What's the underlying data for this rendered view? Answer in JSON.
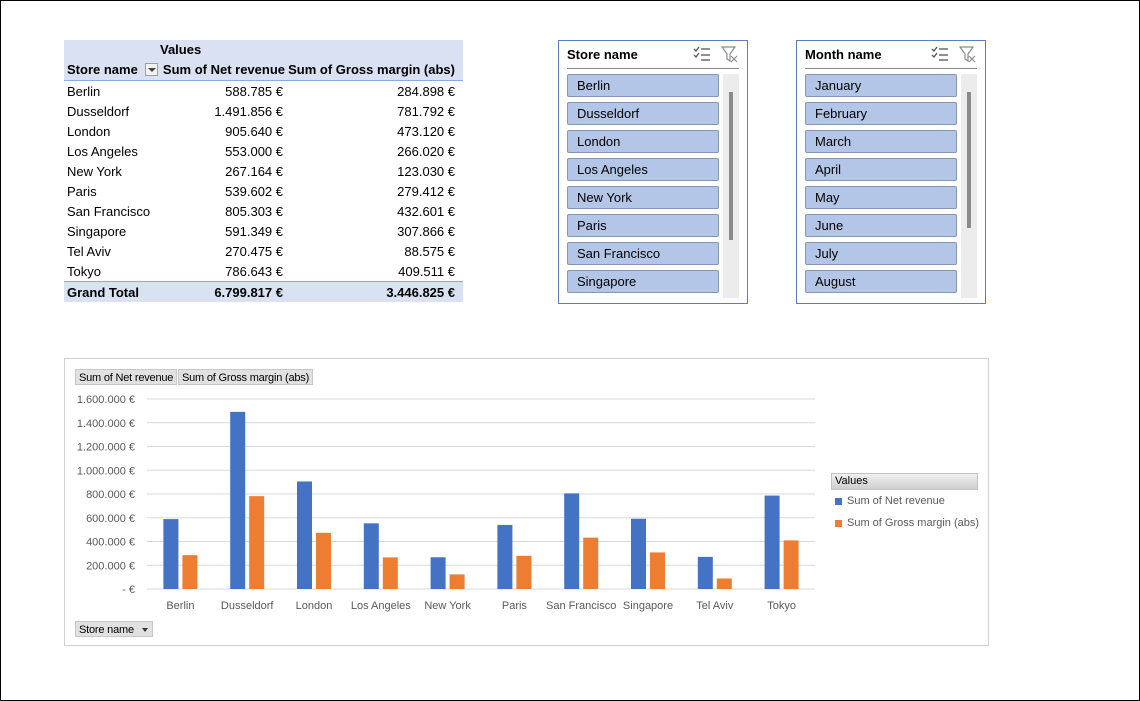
{
  "pivot": {
    "values_label": "Values",
    "col_row": "Store name",
    "col_net": "Sum of Net revenue",
    "col_gross": "Sum of Gross margin (abs)",
    "rows": [
      {
        "store": "Berlin",
        "net": "588.785 €",
        "gross": "284.898 €"
      },
      {
        "store": "Dusseldorf",
        "net": "1.491.856 €",
        "gross": "781.792 €"
      },
      {
        "store": "London",
        "net": "905.640 €",
        "gross": "473.120 €"
      },
      {
        "store": "Los Angeles",
        "net": "553.000 €",
        "gross": "266.020 €"
      },
      {
        "store": "New York",
        "net": "267.164 €",
        "gross": "123.030 €"
      },
      {
        "store": "Paris",
        "net": "539.602 €",
        "gross": "279.412 €"
      },
      {
        "store": "San Francisco",
        "net": "805.303 €",
        "gross": "432.601 €"
      },
      {
        "store": "Singapore",
        "net": "591.349 €",
        "gross": "307.866 €"
      },
      {
        "store": "Tel Aviv",
        "net": "270.475 €",
        "gross": "88.575 €"
      },
      {
        "store": "Tokyo",
        "net": "786.643 €",
        "gross": "409.511 €"
      }
    ],
    "total_label": "Grand Total",
    "total_net": "6.799.817 €",
    "total_gross": "3.446.825 €"
  },
  "slicer_store": {
    "title": "Store name",
    "items": [
      "Berlin",
      "Dusseldorf",
      "London",
      "Los Angeles",
      "New York",
      "Paris",
      "San Francisco",
      "Singapore"
    ]
  },
  "slicer_month": {
    "title": "Month name",
    "items": [
      "January",
      "February",
      "March",
      "April",
      "May",
      "June",
      "July",
      "August"
    ]
  },
  "chart_buttons": {
    "net": "Sum of Net revenue",
    "gross": "Sum of Gross margin (abs)",
    "axis_field": "Store name"
  },
  "legend": {
    "title": "Values",
    "net": "Sum of Net revenue",
    "gross": "Sum of Gross margin (abs)"
  },
  "colors": {
    "net": "#4472c4",
    "gross": "#ed7d31",
    "slicer_item": "#b4c6e7",
    "header": "#d9e1f2"
  },
  "chart_data": {
    "type": "bar",
    "categories": [
      "Berlin",
      "Dusseldorf",
      "London",
      "Los Angeles",
      "New York",
      "Paris",
      "San Francisco",
      "Singapore",
      "Tel Aviv",
      "Tokyo"
    ],
    "series": [
      {
        "name": "Sum of Net revenue",
        "values": [
          588785,
          1491856,
          905640,
          553000,
          267164,
          539602,
          805303,
          591349,
          270475,
          786643
        ]
      },
      {
        "name": "Sum of Gross margin (abs)",
        "values": [
          284898,
          781792,
          473120,
          266020,
          123030,
          279412,
          432601,
          307866,
          88575,
          409511
        ]
      }
    ],
    "ylim": [
      0,
      1600000
    ],
    "yticks": [
      0,
      200000,
      400000,
      600000,
      800000,
      1000000,
      1200000,
      1400000,
      1600000
    ],
    "ytick_labels": [
      "- €",
      "200.000 €",
      "400.000 €",
      "600.000 €",
      "800.000 €",
      "1.000.000 €",
      "1.200.000 €",
      "1.400.000 €",
      "1.600.000 €"
    ],
    "grid": true,
    "legend_position": "right"
  }
}
